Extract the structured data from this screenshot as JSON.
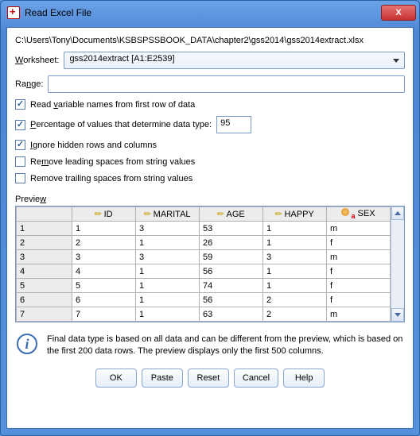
{
  "window": {
    "title": "Read Excel File",
    "close_label": "X"
  },
  "path": "C:\\Users\\Tony\\Documents\\KSBSPSSBOOK_DATA\\chapter2\\gss2014\\gss2014extract.xlsx",
  "fields": {
    "worksheet_label": "Worksheet:",
    "worksheet_value": "gss2014extract [A1:E2539]",
    "range_label": "Range:",
    "range_value": ""
  },
  "options": {
    "read_var_names": {
      "label_pre": "Read ",
      "label_u": "v",
      "label_post": "ariable names from first row of data",
      "checked": true
    },
    "pct_determine": {
      "label_pre": "",
      "label_u": "P",
      "label_post": "ercentage of values that determine data type:",
      "checked": true,
      "value": "95"
    },
    "ignore_hidden": {
      "label_pre": "",
      "label_u": "I",
      "label_post": "gnore hidden rows and columns",
      "checked": true
    },
    "remove_leading": {
      "label_pre": "Re",
      "label_u": "m",
      "label_post": "ove leading spaces from string values",
      "checked": false
    },
    "remove_trailing": {
      "label_pre": "Remove trailin",
      "label_u": "g",
      "label_post": " spaces from string values",
      "checked": false
    }
  },
  "preview": {
    "label_pre": "Previe",
    "label_u": "w",
    "columns": [
      "ID",
      "MARITAL",
      "AGE",
      "HAPPY",
      "SEX"
    ],
    "rows": [
      {
        "n": "1",
        "ID": "1",
        "MARITAL": "3",
        "AGE": "53",
        "HAPPY": "1",
        "SEX": "m"
      },
      {
        "n": "2",
        "ID": "2",
        "MARITAL": "1",
        "AGE": "26",
        "HAPPY": "1",
        "SEX": "f"
      },
      {
        "n": "3",
        "ID": "3",
        "MARITAL": "3",
        "AGE": "59",
        "HAPPY": "3",
        "SEX": "m"
      },
      {
        "n": "4",
        "ID": "4",
        "MARITAL": "1",
        "AGE": "56",
        "HAPPY": "1",
        "SEX": "f"
      },
      {
        "n": "5",
        "ID": "5",
        "MARITAL": "1",
        "AGE": "74",
        "HAPPY": "1",
        "SEX": "f"
      },
      {
        "n": "6",
        "ID": "6",
        "MARITAL": "1",
        "AGE": "56",
        "HAPPY": "2",
        "SEX": "f"
      },
      {
        "n": "7",
        "ID": "7",
        "MARITAL": "1",
        "AGE": "63",
        "HAPPY": "2",
        "SEX": "m"
      }
    ]
  },
  "info_text": "Final data type is based on all data and can be different from the preview, which is based on the first 200 data rows. The preview displays only the first 500 columns.",
  "buttons": {
    "ok": "OK",
    "paste": "Paste",
    "reset": "Reset",
    "cancel": "Cancel",
    "help": "Help"
  },
  "colors": {
    "accent": "#3a6db5"
  }
}
